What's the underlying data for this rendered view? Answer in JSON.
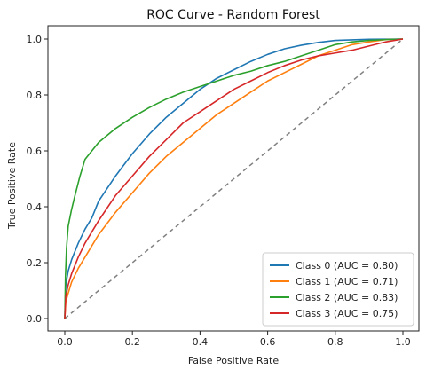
{
  "chart_data": {
    "type": "line",
    "title": "ROC Curve - Random Forest",
    "xlabel": "False Positive Rate",
    "ylabel": "True Positive Rate",
    "xlim": [
      0.0,
      1.0
    ],
    "ylim": [
      0.0,
      1.0
    ],
    "x_ticks": [
      "0.0",
      "0.2",
      "0.4",
      "0.6",
      "0.8",
      "1.0"
    ],
    "y_ticks": [
      "0.0",
      "0.2",
      "0.4",
      "0.6",
      "0.8",
      "1.0"
    ],
    "grid": false,
    "legend_position": "lower-right",
    "diagonal": {
      "color": "#808080",
      "style": "dashed"
    },
    "series": [
      {
        "name": "Class 0 (AUC = 0.80)",
        "color": "#1f77b4",
        "points": [
          [
            0,
            0
          ],
          [
            0.003,
            0.12
          ],
          [
            0.01,
            0.17
          ],
          [
            0.02,
            0.21
          ],
          [
            0.04,
            0.27
          ],
          [
            0.06,
            0.32
          ],
          [
            0.08,
            0.36
          ],
          [
            0.1,
            0.42
          ],
          [
            0.15,
            0.51
          ],
          [
            0.2,
            0.59
          ],
          [
            0.25,
            0.66
          ],
          [
            0.3,
            0.72
          ],
          [
            0.35,
            0.77
          ],
          [
            0.4,
            0.82
          ],
          [
            0.45,
            0.86
          ],
          [
            0.5,
            0.89
          ],
          [
            0.55,
            0.92
          ],
          [
            0.6,
            0.945
          ],
          [
            0.65,
            0.965
          ],
          [
            0.7,
            0.978
          ],
          [
            0.75,
            0.988
          ],
          [
            0.8,
            0.995
          ],
          [
            0.9,
            0.999
          ],
          [
            1,
            1
          ]
        ]
      },
      {
        "name": "Class 1 (AUC = 0.71)",
        "color": "#ff7f0e",
        "points": [
          [
            0,
            0
          ],
          [
            0.003,
            0.06
          ],
          [
            0.01,
            0.09
          ],
          [
            0.02,
            0.13
          ],
          [
            0.04,
            0.18
          ],
          [
            0.06,
            0.22
          ],
          [
            0.08,
            0.26
          ],
          [
            0.1,
            0.3
          ],
          [
            0.15,
            0.38
          ],
          [
            0.2,
            0.45
          ],
          [
            0.25,
            0.52
          ],
          [
            0.3,
            0.58
          ],
          [
            0.35,
            0.63
          ],
          [
            0.4,
            0.68
          ],
          [
            0.45,
            0.73
          ],
          [
            0.5,
            0.77
          ],
          [
            0.55,
            0.81
          ],
          [
            0.6,
            0.85
          ],
          [
            0.65,
            0.88
          ],
          [
            0.7,
            0.91
          ],
          [
            0.75,
            0.94
          ],
          [
            0.8,
            0.96
          ],
          [
            0.85,
            0.98
          ],
          [
            0.9,
            0.99
          ],
          [
            0.95,
            0.998
          ],
          [
            1,
            1
          ]
        ]
      },
      {
        "name": "Class 2 (AUC = 0.83)",
        "color": "#2ca02c",
        "points": [
          [
            0,
            0
          ],
          [
            0.002,
            0.15
          ],
          [
            0.005,
            0.25
          ],
          [
            0.01,
            0.33
          ],
          [
            0.02,
            0.39
          ],
          [
            0.03,
            0.44
          ],
          [
            0.045,
            0.51
          ],
          [
            0.06,
            0.57
          ],
          [
            0.08,
            0.6
          ],
          [
            0.1,
            0.63
          ],
          [
            0.15,
            0.68
          ],
          [
            0.2,
            0.72
          ],
          [
            0.25,
            0.755
          ],
          [
            0.3,
            0.785
          ],
          [
            0.35,
            0.81
          ],
          [
            0.4,
            0.83
          ],
          [
            0.45,
            0.85
          ],
          [
            0.5,
            0.87
          ],
          [
            0.55,
            0.885
          ],
          [
            0.6,
            0.905
          ],
          [
            0.65,
            0.92
          ],
          [
            0.7,
            0.94
          ],
          [
            0.75,
            0.96
          ],
          [
            0.8,
            0.98
          ],
          [
            0.85,
            0.99
          ],
          [
            0.9,
            0.995
          ],
          [
            0.95,
            0.998
          ],
          [
            1,
            1
          ]
        ]
      },
      {
        "name": "Class 3 (AUC = 0.75)",
        "color": "#d62728",
        "points": [
          [
            0,
            0
          ],
          [
            0.003,
            0.08
          ],
          [
            0.01,
            0.12
          ],
          [
            0.02,
            0.16
          ],
          [
            0.04,
            0.22
          ],
          [
            0.06,
            0.27
          ],
          [
            0.08,
            0.31
          ],
          [
            0.1,
            0.35
          ],
          [
            0.15,
            0.44
          ],
          [
            0.2,
            0.51
          ],
          [
            0.25,
            0.58
          ],
          [
            0.3,
            0.64
          ],
          [
            0.35,
            0.7
          ],
          [
            0.4,
            0.74
          ],
          [
            0.45,
            0.78
          ],
          [
            0.5,
            0.82
          ],
          [
            0.55,
            0.85
          ],
          [
            0.6,
            0.88
          ],
          [
            0.65,
            0.905
          ],
          [
            0.7,
            0.925
          ],
          [
            0.75,
            0.94
          ],
          [
            0.8,
            0.95
          ],
          [
            0.85,
            0.96
          ],
          [
            0.9,
            0.975
          ],
          [
            0.95,
            0.99
          ],
          [
            1,
            1
          ]
        ]
      }
    ]
  }
}
